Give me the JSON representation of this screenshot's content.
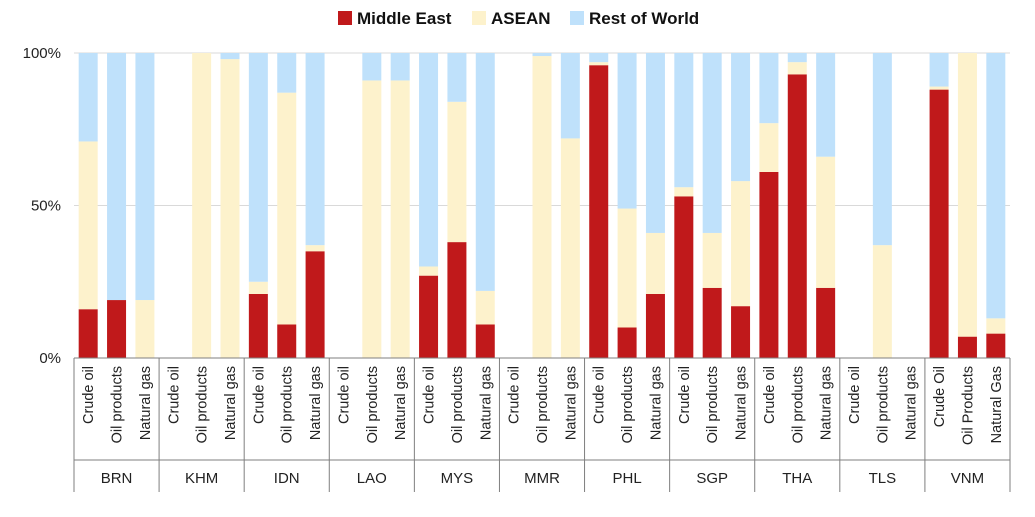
{
  "chart_data": {
    "type": "bar",
    "stacked": true,
    "percent": true,
    "title": "",
    "xlabel": "",
    "ylabel": "",
    "ylim": [
      0,
      100
    ],
    "yticks": [
      "0%",
      "50%",
      "100%"
    ],
    "grid": true,
    "legend_position": "top",
    "colors": {
      "Middle East": "#c0191b",
      "ASEAN": "#fdf2cc",
      "Rest of World": "#bfe1fb"
    },
    "groups": [
      {
        "name": "BRN",
        "categories": [
          "Crude oil",
          "Oil products",
          "Natural gas"
        ]
      },
      {
        "name": "KHM",
        "categories": [
          "Crude oil",
          "Oil products",
          "Natural gas"
        ]
      },
      {
        "name": "IDN",
        "categories": [
          "Crude oil",
          "Oil products",
          "Natural gas"
        ]
      },
      {
        "name": "LAO",
        "categories": [
          "Crude oil",
          "Oil products",
          "Natural gas"
        ]
      },
      {
        "name": "MYS",
        "categories": [
          "Crude oil",
          "Oil products",
          "Natural gas"
        ]
      },
      {
        "name": "MMR",
        "categories": [
          "Crude oil",
          "Oil products",
          "Natural gas"
        ]
      },
      {
        "name": "PHL",
        "categories": [
          "Crude oil",
          "Oil products",
          "Natural gas"
        ]
      },
      {
        "name": "SGP",
        "categories": [
          "Crude oil",
          "Oil products",
          "Natural gas"
        ]
      },
      {
        "name": "THA",
        "categories": [
          "Crude oil",
          "Oil products",
          "Natural gas"
        ]
      },
      {
        "name": "TLS",
        "categories": [
          "Crude oil",
          "Oil products",
          "Natural gas"
        ]
      },
      {
        "name": "VNM",
        "categories": [
          "Crude Oil",
          "Oil Products",
          "Natural Gas"
        ]
      }
    ],
    "series": [
      {
        "name": "Middle East",
        "values": [
          16,
          19,
          0,
          0,
          0,
          0,
          21,
          11,
          35,
          0,
          0,
          0,
          27,
          38,
          11,
          0,
          0,
          0,
          96,
          10,
          21,
          53,
          23,
          17,
          61,
          93,
          23,
          0,
          0,
          0,
          88,
          7,
          8
        ]
      },
      {
        "name": "ASEAN",
        "values": [
          55,
          0,
          19,
          0,
          100,
          98,
          4,
          76,
          2,
          0,
          91,
          91,
          3,
          46,
          11,
          0,
          99,
          72,
          1,
          39,
          20,
          3,
          18,
          41,
          16,
          4,
          43,
          0,
          37,
          0,
          1,
          93,
          5
        ]
      },
      {
        "name": "Rest of World",
        "values": [
          29,
          81,
          81,
          0,
          0,
          2,
          75,
          13,
          63,
          0,
          9,
          9,
          70,
          16,
          78,
          0,
          1,
          28,
          3,
          51,
          59,
          44,
          59,
          42,
          23,
          3,
          34,
          0,
          63,
          0,
          11,
          0,
          87
        ]
      }
    ]
  }
}
